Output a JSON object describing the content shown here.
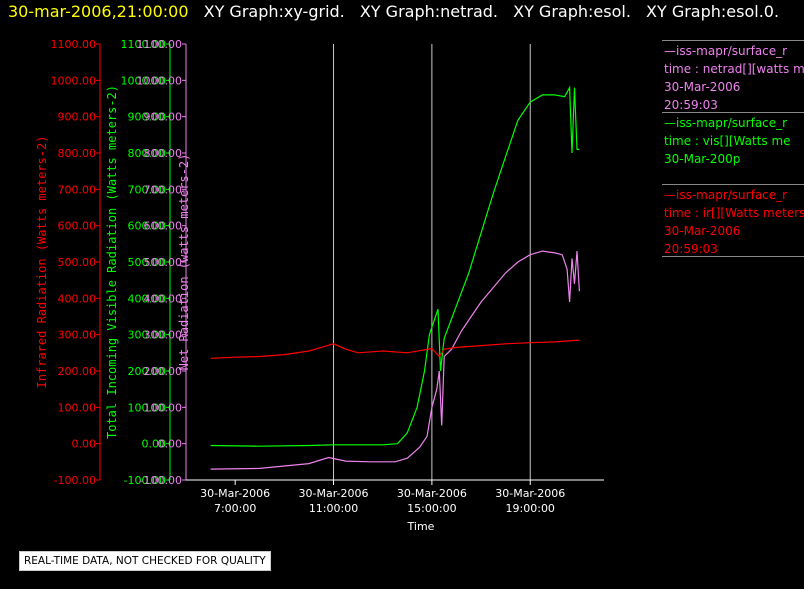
{
  "header": {
    "datetime": "30-mar-2006,21:00:00",
    "labels": [
      "XY Graph:xy-grid.",
      "XY Graph:netrad.",
      "XY Graph:esol.",
      "XY Graph:esol.0."
    ]
  },
  "legend": [
    {
      "lines": [
        "—iss-mapr/surface_r",
        "time : netrad[][watts m",
        "30-Mar-2006",
        "20:59:03"
      ],
      "color": "#ee82ee"
    },
    {
      "lines": [
        "—iss-mapr/surface_r",
        "time : vis[][Watts me",
        "30-Mar-200p"
      ],
      "color": "#00ff00"
    },
    {
      "lines": [
        "—iss-mapr/surface_r",
        "time : ir[][Watts meters",
        "30-Mar-2006",
        "20:59:03"
      ],
      "color": "#ff0000"
    }
  ],
  "disclaimer": "REAL-TIME DATA, NOT CHECKED FOR QUALITY",
  "chart_data": {
    "type": "line",
    "xlabel": "Time",
    "x_ticks": [
      "30-Mar-2006\n7:00:00",
      "30-Mar-2006\n11:00:00",
      "30-Mar-2006\n15:00:00",
      "30-Mar-2006\n19:00:00"
    ],
    "x_range_hours": [
      5,
      22
    ],
    "grid_hours": [
      11,
      15,
      19
    ],
    "axes": [
      {
        "id": "ir",
        "label": "Infrared Radiation (Watts meters-2)",
        "color": "#ff0000",
        "ylim": [
          -100,
          1100
        ]
      },
      {
        "id": "vis",
        "label": "Total Incoming Visible Radiation (Watts meters-2)",
        "color": "#00ff00",
        "ylim": [
          -100,
          1100
        ]
      },
      {
        "id": "net",
        "label": "Net Radiation (watts meters-2)",
        "color": "#ee82ee",
        "ylim": [
          -100,
          1100
        ]
      }
    ],
    "ticks": [
      -100,
      0,
      100,
      200,
      300,
      400,
      500,
      600,
      700,
      800,
      900,
      1000,
      1100
    ],
    "tick_labels": [
      "-100.00",
      "0.00",
      "100.00",
      "200.00",
      "300.00",
      "400.00",
      "500.00",
      "600.00",
      "700.00",
      "800.00",
      "900.00",
      "1000.00",
      "1100.00"
    ],
    "series": [
      {
        "id": "vis",
        "color": "#00ff00",
        "points": [
          [
            6.0,
            -5
          ],
          [
            8,
            -7
          ],
          [
            10,
            -5
          ],
          [
            11,
            -3
          ],
          [
            12,
            -3
          ],
          [
            13,
            -3
          ],
          [
            13.6,
            0
          ],
          [
            14.0,
            30
          ],
          [
            14.4,
            100
          ],
          [
            14.7,
            200
          ],
          [
            14.9,
            300
          ],
          [
            15.1,
            340
          ],
          [
            15.25,
            370
          ],
          [
            15.35,
            200
          ],
          [
            15.5,
            290
          ],
          [
            16.0,
            380
          ],
          [
            16.5,
            470
          ],
          [
            17.0,
            580
          ],
          [
            17.5,
            690
          ],
          [
            18.0,
            790
          ],
          [
            18.5,
            890
          ],
          [
            19.0,
            940
          ],
          [
            19.5,
            960
          ],
          [
            20.0,
            960
          ],
          [
            20.4,
            955
          ],
          [
            20.6,
            980
          ],
          [
            20.7,
            800
          ],
          [
            20.8,
            980
          ],
          [
            20.9,
            810
          ],
          [
            21.0,
            810
          ]
        ]
      },
      {
        "id": "net",
        "color": "#ee82ee",
        "points": [
          [
            6.0,
            -70
          ],
          [
            8,
            -68
          ],
          [
            10,
            -55
          ],
          [
            10.8,
            -38
          ],
          [
            11.5,
            -48
          ],
          [
            12.5,
            -50
          ],
          [
            13.5,
            -50
          ],
          [
            14.0,
            -40
          ],
          [
            14.5,
            -10
          ],
          [
            14.8,
            20
          ],
          [
            15.0,
            100
          ],
          [
            15.2,
            150
          ],
          [
            15.3,
            200
          ],
          [
            15.4,
            50
          ],
          [
            15.5,
            240
          ],
          [
            15.8,
            260
          ],
          [
            16.2,
            310
          ],
          [
            16.6,
            350
          ],
          [
            17.0,
            390
          ],
          [
            17.5,
            430
          ],
          [
            18.0,
            470
          ],
          [
            18.5,
            500
          ],
          [
            19.0,
            520
          ],
          [
            19.5,
            530
          ],
          [
            20.0,
            525
          ],
          [
            20.3,
            520
          ],
          [
            20.5,
            480
          ],
          [
            20.6,
            390
          ],
          [
            20.7,
            510
          ],
          [
            20.8,
            440
          ],
          [
            20.9,
            530
          ],
          [
            21.0,
            420
          ]
        ]
      },
      {
        "id": "ir",
        "color": "#ff0000",
        "points": [
          [
            6.0,
            235
          ],
          [
            7,
            238
          ],
          [
            8,
            240
          ],
          [
            9,
            245
          ],
          [
            10,
            255
          ],
          [
            10.5,
            265
          ],
          [
            11.0,
            275
          ],
          [
            11.5,
            260
          ],
          [
            12.0,
            250
          ],
          [
            13.0,
            255
          ],
          [
            14.0,
            250
          ],
          [
            15.0,
            262
          ],
          [
            15.3,
            240
          ],
          [
            15.5,
            260
          ],
          [
            16,
            265
          ],
          [
            17,
            270
          ],
          [
            18,
            275
          ],
          [
            19,
            278
          ],
          [
            20,
            280
          ],
          [
            21,
            285
          ]
        ]
      }
    ]
  }
}
